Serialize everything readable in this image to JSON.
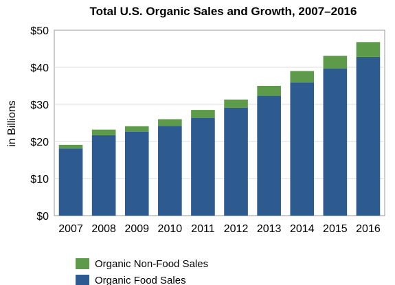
{
  "chart_data": {
    "type": "bar",
    "stacked": true,
    "title": "Total U.S. Organic Sales and Growth, 2007–2016",
    "xlabel": "",
    "ylabel": "in Billions",
    "ylim": [
      0,
      50
    ],
    "yticks": [
      0,
      10,
      20,
      30,
      40,
      50
    ],
    "ytick_labels": [
      "$0",
      "$10",
      "$20",
      "$30",
      "$40",
      "$50"
    ],
    "grid": true,
    "legend_position": "bottom-left",
    "categories": [
      "2007",
      "2008",
      "2009",
      "2010",
      "2011",
      "2012",
      "2013",
      "2014",
      "2015",
      "2016"
    ],
    "series": [
      {
        "name": "Organic Food Sales",
        "color": "#2e5b8f",
        "values": [
          18.1,
          21.7,
          22.6,
          24.2,
          26.3,
          29.1,
          32.3,
          35.9,
          39.7,
          42.8
        ]
      },
      {
        "name": "Organic Non-Food Sales",
        "color": "#5d9b4a",
        "values": [
          1.0,
          1.5,
          1.5,
          1.8,
          2.2,
          2.2,
          2.7,
          3.1,
          3.4,
          4.0
        ]
      }
    ],
    "legend_order": [
      "Organic Non-Food Sales",
      "Organic Food Sales"
    ]
  }
}
